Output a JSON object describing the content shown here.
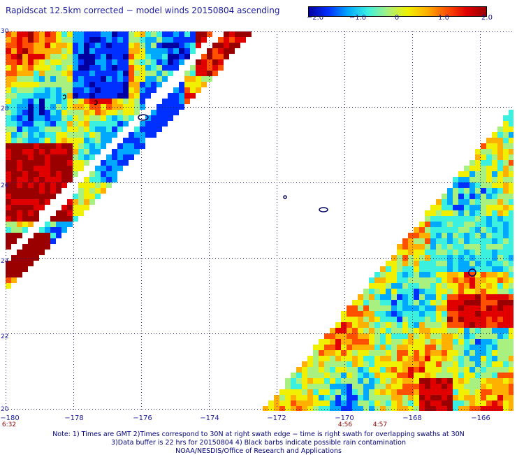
{
  "title": "Rapidscat 12.5km corrected − model winds 20150804 ascending",
  "colorbar": {
    "min": -2.0,
    "max": 2.0,
    "ticks": [
      "−2.0",
      "−1.0",
      "0",
      "1.0",
      "2.0"
    ],
    "colors": [
      "#0000a0",
      "#0030ff",
      "#00a8ff",
      "#3cf0e0",
      "#a8f080",
      "#f0f000",
      "#ffb000",
      "#ff5000",
      "#e00000",
      "#9a0000"
    ]
  },
  "map": {
    "lon_range": [
      -180,
      -165
    ],
    "lat_range": [
      20,
      30
    ],
    "lon_ticks": [
      "−180",
      "−178",
      "−176",
      "−174",
      "−172",
      "−170",
      "−168",
      "−166"
    ],
    "lat_ticks": [
      "30",
      "28",
      "26",
      "24",
      "22",
      "20"
    ],
    "times": [
      "6:32",
      "4:56",
      "4:57"
    ]
  },
  "notes": {
    "line1": "Note: 1) Times are GMT 2)Times correspond to 30N at right swath edge − time is right swath for overlapping swaths at 30N",
    "line2": "3)Data buffer is 22 hrs for 20150804 4) Black barbs indicate possible rain contamination",
    "line3": "NOAA/NESDIS/Office of Research and Applications"
  }
}
